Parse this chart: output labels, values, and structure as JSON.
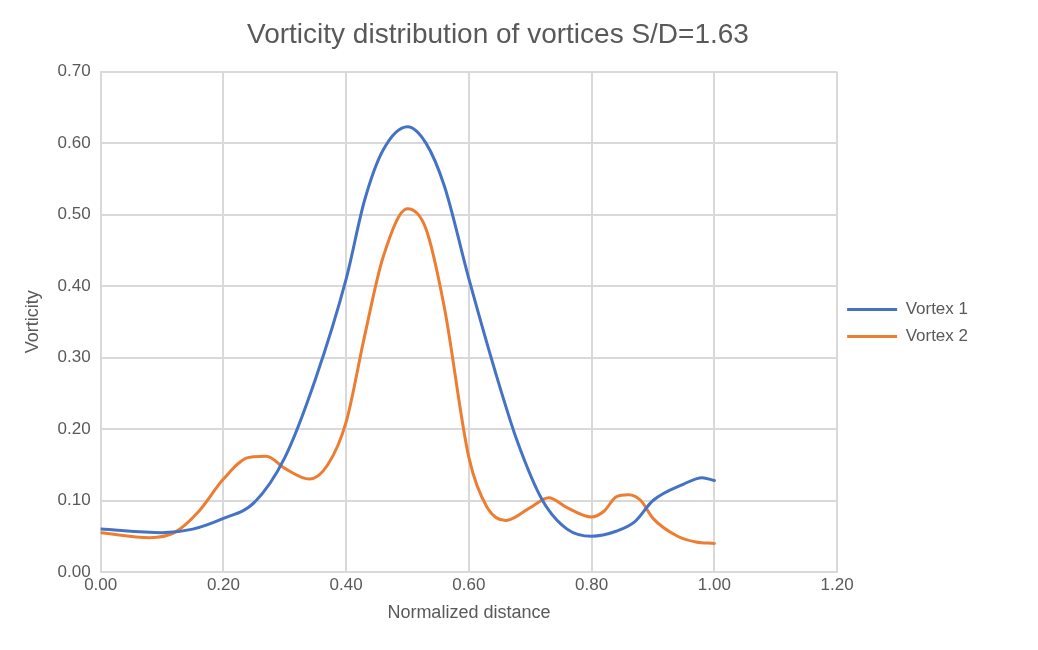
{
  "chart_data": {
    "type": "line",
    "title": "Vorticity distribution of vortices S/D=1.63",
    "xlabel": "Normalized distance",
    "ylabel": "Vorticity",
    "xlim": [
      0,
      1.2
    ],
    "xticks": [
      {
        "value": 0,
        "label": "0.00"
      },
      {
        "value": 0.2,
        "label": "0.20"
      },
      {
        "value": 0.4,
        "label": "0.40"
      },
      {
        "value": 0.6,
        "label": "0.60"
      },
      {
        "value": 0.8,
        "label": "0.80"
      },
      {
        "value": 1,
        "label": "1.00"
      },
      {
        "value": 1.2,
        "label": "1.20"
      }
    ],
    "ylim": [
      0,
      0.7
    ],
    "yticks": [
      {
        "value": 0,
        "label": "0.00"
      },
      {
        "value": 0.1,
        "label": "0.10"
      },
      {
        "value": 0.2,
        "label": "0.20"
      },
      {
        "value": 0.3,
        "label": "0.30"
      },
      {
        "value": 0.4,
        "label": "0.40"
      },
      {
        "value": 0.5,
        "label": "0.50"
      },
      {
        "value": 0.6,
        "label": "0.60"
      },
      {
        "value": 0.7,
        "label": "0.70"
      }
    ],
    "grid": true,
    "legend": "right",
    "marker": "none",
    "line_style": "solid",
    "series": [
      {
        "name": "Vortex 1",
        "color": "#4472c4",
        "x": [
          0,
          0.1,
          0.15,
          0.2,
          0.25,
          0.3,
          0.35,
          0.4,
          0.43,
          0.46,
          0.5,
          0.53,
          0.56,
          0.6,
          0.65,
          0.68,
          0.72,
          0.76,
          0.8,
          0.84,
          0.87,
          0.9,
          0.95,
          0.98,
          1.0
        ],
        "values": [
          0.06,
          0.055,
          0.06,
          0.075,
          0.097,
          0.16,
          0.27,
          0.41,
          0.52,
          0.59,
          0.623,
          0.6,
          0.54,
          0.41,
          0.26,
          0.18,
          0.1,
          0.06,
          0.05,
          0.057,
          0.07,
          0.1,
          0.123,
          0.132,
          0.128
        ]
      },
      {
        "name": "Vortex 2",
        "color": "#ed7d31",
        "x": [
          0,
          0.08,
          0.12,
          0.16,
          0.2,
          0.24,
          0.27,
          0.3,
          0.34,
          0.37,
          0.4,
          0.43,
          0.46,
          0.5,
          0.53,
          0.56,
          0.6,
          0.63,
          0.66,
          0.7,
          0.73,
          0.76,
          0.8,
          0.82,
          0.84,
          0.86,
          0.88,
          0.9,
          0.94,
          0.97,
          1.0
        ],
        "values": [
          0.055,
          0.048,
          0.055,
          0.085,
          0.13,
          0.16,
          0.162,
          0.145,
          0.13,
          0.15,
          0.21,
          0.33,
          0.44,
          0.508,
          0.48,
          0.37,
          0.16,
          0.09,
          0.072,
          0.09,
          0.104,
          0.09,
          0.077,
          0.085,
          0.105,
          0.108,
          0.1,
          0.075,
          0.05,
          0.042,
          0.04
        ]
      }
    ]
  }
}
